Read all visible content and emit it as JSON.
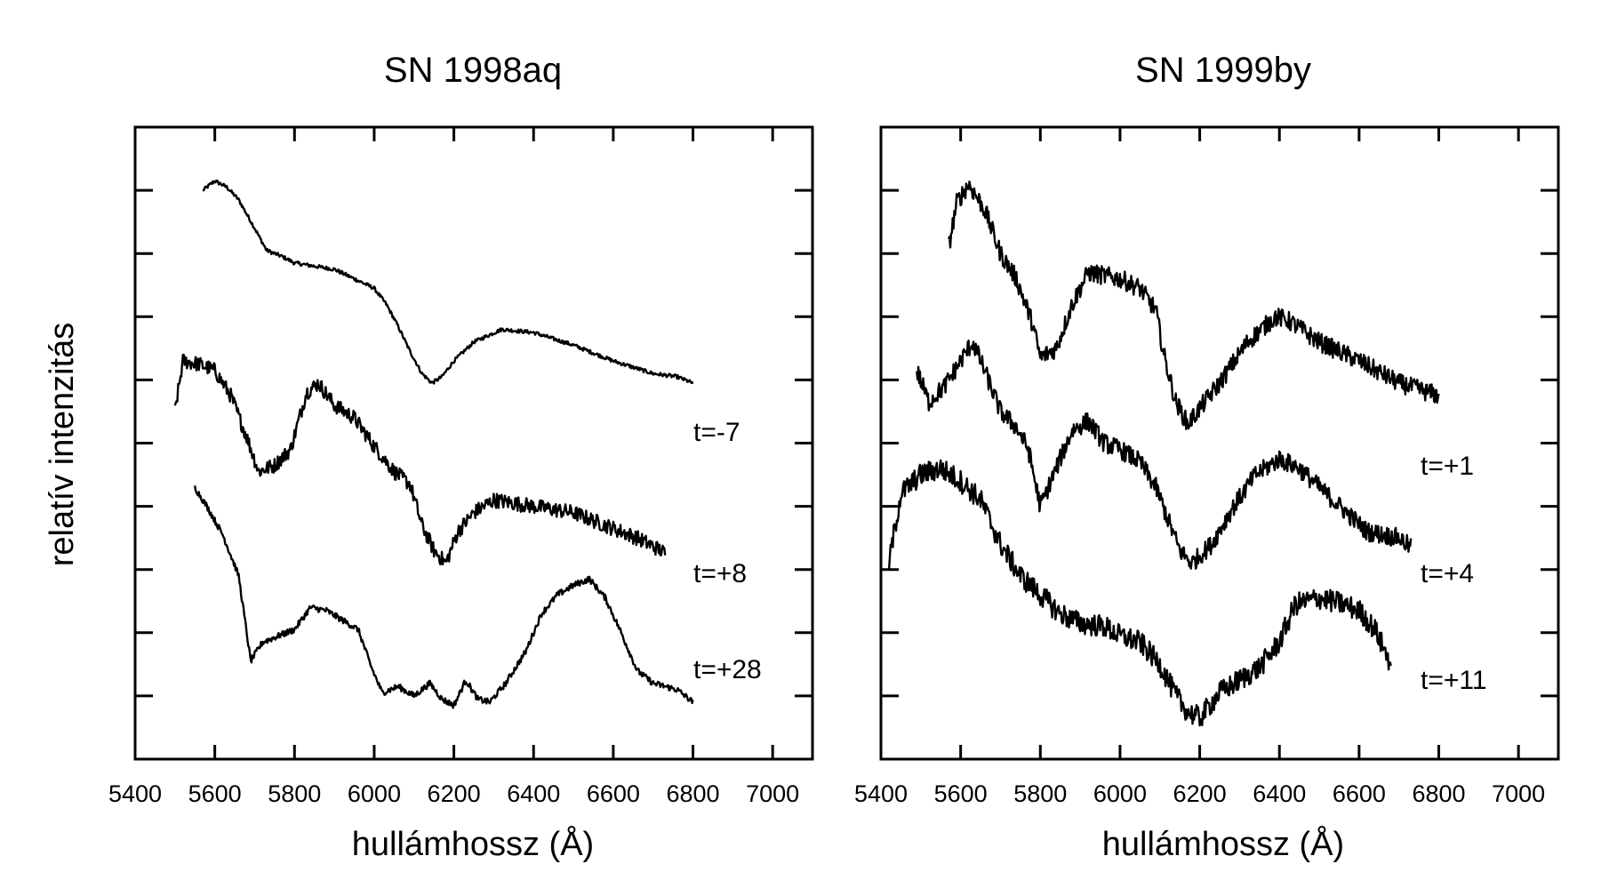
{
  "shared_ylabel": "relatív intenzitás",
  "chart_data": [
    {
      "type": "line",
      "title": "SN 1998aq",
      "xlabel": "hullámhossz (Å)",
      "ylabel": "relatív intenzitás",
      "xlim": [
        5400,
        7100
      ],
      "ylim": [
        0,
        10
      ],
      "x_ticks": [
        "5400",
        "5600",
        "5800",
        "6000",
        "6200",
        "6400",
        "6600",
        "6800",
        "7000"
      ],
      "y_tick_values": [
        1,
        2,
        3,
        4,
        5,
        6,
        7,
        8,
        9,
        10
      ],
      "y_tick_labels_shown": false,
      "grid": false,
      "series": [
        {
          "name": "t=-7",
          "noise": 0.03,
          "points": [
            [
              5570,
              9.0
            ],
            [
              5600,
              9.15
            ],
            [
              5630,
              9.05
            ],
            [
              5660,
              8.85
            ],
            [
              5700,
              8.4
            ],
            [
              5730,
              8.05
            ],
            [
              5770,
              7.95
            ],
            [
              5800,
              7.85
            ],
            [
              5850,
              7.8
            ],
            [
              5900,
              7.75
            ],
            [
              5950,
              7.6
            ],
            [
              6000,
              7.45
            ],
            [
              6030,
              7.2
            ],
            [
              6060,
              6.85
            ],
            [
              6090,
              6.45
            ],
            [
              6120,
              6.1
            ],
            [
              6145,
              5.95
            ],
            [
              6170,
              6.05
            ],
            [
              6200,
              6.3
            ],
            [
              6250,
              6.6
            ],
            [
              6320,
              6.8
            ],
            [
              6400,
              6.75
            ],
            [
              6500,
              6.55
            ],
            [
              6600,
              6.3
            ],
            [
              6700,
              6.1
            ],
            [
              6760,
              6.05
            ],
            [
              6800,
              5.95
            ]
          ]
        },
        {
          "name": "t=+8",
          "noise": 0.12,
          "points": [
            [
              5500,
              5.5
            ],
            [
              5520,
              6.3
            ],
            [
              5560,
              6.25
            ],
            [
              5600,
              6.15
            ],
            [
              5640,
              5.75
            ],
            [
              5680,
              5.1
            ],
            [
              5710,
              4.55
            ],
            [
              5750,
              4.65
            ],
            [
              5790,
              4.9
            ],
            [
              5830,
              5.8
            ],
            [
              5860,
              5.95
            ],
            [
              5900,
              5.6
            ],
            [
              5950,
              5.4
            ],
            [
              6000,
              4.95
            ],
            [
              6050,
              4.55
            ],
            [
              6090,
              4.35
            ],
            [
              6120,
              3.7
            ],
            [
              6150,
              3.3
            ],
            [
              6180,
              3.1
            ],
            [
              6210,
              3.6
            ],
            [
              6250,
              3.9
            ],
            [
              6300,
              4.1
            ],
            [
              6400,
              4.0
            ],
            [
              6500,
              3.9
            ],
            [
              6600,
              3.65
            ],
            [
              6660,
              3.5
            ],
            [
              6720,
              3.3
            ],
            [
              6730,
              3.25
            ]
          ]
        },
        {
          "name": "t=+28",
          "noise": 0.05,
          "points": [
            [
              5550,
              4.3
            ],
            [
              5580,
              4.0
            ],
            [
              5620,
              3.55
            ],
            [
              5660,
              2.9
            ],
            [
              5690,
              1.55
            ],
            [
              5720,
              1.85
            ],
            [
              5760,
              1.95
            ],
            [
              5800,
              2.05
            ],
            [
              5840,
              2.4
            ],
            [
              5880,
              2.35
            ],
            [
              5920,
              2.2
            ],
            [
              5960,
              2.05
            ],
            [
              5990,
              1.5
            ],
            [
              6020,
              1.05
            ],
            [
              6060,
              1.15
            ],
            [
              6100,
              1.0
            ],
            [
              6140,
              1.2
            ],
            [
              6170,
              0.95
            ],
            [
              6200,
              0.85
            ],
            [
              6230,
              1.25
            ],
            [
              6260,
              0.95
            ],
            [
              6290,
              0.9
            ],
            [
              6330,
              1.2
            ],
            [
              6380,
              1.7
            ],
            [
              6420,
              2.3
            ],
            [
              6460,
              2.6
            ],
            [
              6500,
              2.75
            ],
            [
              6540,
              2.85
            ],
            [
              6580,
              2.55
            ],
            [
              6620,
              2.0
            ],
            [
              6660,
              1.4
            ],
            [
              6700,
              1.2
            ],
            [
              6760,
              1.1
            ],
            [
              6800,
              0.9
            ]
          ]
        }
      ],
      "annotations": [
        "t=-7",
        "t=+8",
        "t=+28"
      ]
    },
    {
      "type": "line",
      "title": "SN 1999by",
      "xlabel": "hullámhossz (Å)",
      "ylabel": "",
      "xlim": [
        5400,
        7100
      ],
      "ylim": [
        0,
        10
      ],
      "x_ticks": [
        "5400",
        "5600",
        "5800",
        "6000",
        "6200",
        "6400",
        "6600",
        "6800",
        "7000"
      ],
      "y_tick_values": [
        1,
        2,
        3,
        4,
        5,
        6,
        7,
        8,
        9,
        10
      ],
      "y_tick_labels_shown": false,
      "grid": false,
      "series": [
        {
          "name": "t=+1",
          "noise": 0.15,
          "points": [
            [
              5570,
              8.1
            ],
            [
              5590,
              8.8
            ],
            [
              5620,
              9.1
            ],
            [
              5660,
              8.7
            ],
            [
              5700,
              8.0
            ],
            [
              5740,
              7.6
            ],
            [
              5780,
              6.9
            ],
            [
              5800,
              6.35
            ],
            [
              5840,
              6.5
            ],
            [
              5880,
              7.2
            ],
            [
              5920,
              7.7
            ],
            [
              5960,
              7.65
            ],
            [
              6000,
              7.6
            ],
            [
              6050,
              7.45
            ],
            [
              6090,
              7.1
            ],
            [
              6110,
              6.4
            ],
            [
              6140,
              5.65
            ],
            [
              6170,
              5.3
            ],
            [
              6200,
              5.55
            ],
            [
              6250,
              5.95
            ],
            [
              6320,
              6.6
            ],
            [
              6390,
              7.0
            ],
            [
              6420,
              6.95
            ],
            [
              6500,
              6.6
            ],
            [
              6600,
              6.3
            ],
            [
              6700,
              5.95
            ],
            [
              6800,
              5.75
            ]
          ]
        },
        {
          "name": "t=+4",
          "noise": 0.15,
          "points": [
            [
              5490,
              6.15
            ],
            [
              5520,
              5.65
            ],
            [
              5560,
              5.9
            ],
            [
              5600,
              6.3
            ],
            [
              5630,
              6.6
            ],
            [
              5660,
              6.15
            ],
            [
              5700,
              5.5
            ],
            [
              5740,
              5.25
            ],
            [
              5770,
              4.9
            ],
            [
              5800,
              4.0
            ],
            [
              5840,
              4.6
            ],
            [
              5880,
              5.2
            ],
            [
              5920,
              5.35
            ],
            [
              5960,
              5.0
            ],
            [
              6000,
              4.9
            ],
            [
              6050,
              4.7
            ],
            [
              6090,
              4.3
            ],
            [
              6120,
              3.8
            ],
            [
              6150,
              3.3
            ],
            [
              6180,
              3.1
            ],
            [
              6230,
              3.4
            ],
            [
              6280,
              3.95
            ],
            [
              6340,
              4.5
            ],
            [
              6400,
              4.75
            ],
            [
              6450,
              4.6
            ],
            [
              6500,
              4.3
            ],
            [
              6560,
              3.95
            ],
            [
              6620,
              3.6
            ],
            [
              6700,
              3.5
            ],
            [
              6730,
              3.35
            ]
          ]
        },
        {
          "name": "t=+11",
          "noise": 0.18,
          "points": [
            [
              5420,
              3.1
            ],
            [
              5450,
              4.2
            ],
            [
              5500,
              4.5
            ],
            [
              5550,
              4.6
            ],
            [
              5600,
              4.4
            ],
            [
              5650,
              4.1
            ],
            [
              5700,
              3.4
            ],
            [
              5750,
              2.9
            ],
            [
              5800,
              2.6
            ],
            [
              5850,
              2.3
            ],
            [
              5900,
              2.15
            ],
            [
              5960,
              2.1
            ],
            [
              6000,
              1.95
            ],
            [
              6050,
              1.85
            ],
            [
              6100,
              1.5
            ],
            [
              6140,
              1.0
            ],
            [
              6170,
              0.75
            ],
            [
              6200,
              0.65
            ],
            [
              6250,
              1.05
            ],
            [
              6300,
              1.25
            ],
            [
              6350,
              1.45
            ],
            [
              6400,
              1.85
            ],
            [
              6440,
              2.45
            ],
            [
              6500,
              2.55
            ],
            [
              6560,
              2.45
            ],
            [
              6600,
              2.35
            ],
            [
              6640,
              2.05
            ],
            [
              6680,
              1.5
            ]
          ]
        }
      ],
      "annotations": [
        "t=+1",
        "t=+4",
        "t=+11"
      ]
    }
  ]
}
